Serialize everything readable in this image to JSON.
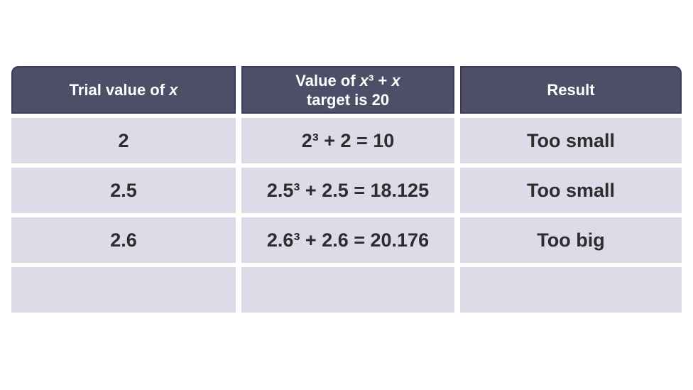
{
  "colors": {
    "page_bg": "#ffffff",
    "header_bg": "#4e4e69",
    "header_border": "#3a3a54",
    "header_text": "#ffffff",
    "cell_bg": "#dcdbe8",
    "cell_text": "#2d2d2d"
  },
  "table": {
    "header": {
      "trial": {
        "pre": "Trial value of ",
        "var": "x"
      },
      "value": {
        "l1_pre": "Value of ",
        "l1_var1": "x",
        "l1_mid": "³ + ",
        "l1_var2": "x",
        "line2": "target is 20"
      },
      "result": "Result"
    },
    "rows": [
      {
        "trial": "2",
        "value": "2³ + 2 = 10",
        "result": "Too small"
      },
      {
        "trial": "2.5",
        "value": "2.5³ + 2.5 = 18.125",
        "result": "Too small"
      },
      {
        "trial": "2.6",
        "value": "2.6³ + 2.6 = 20.176",
        "result": "Too big"
      },
      {
        "trial": "",
        "value": "",
        "result": ""
      }
    ]
  },
  "chart_data": {
    "type": "table",
    "columns": [
      "Trial value of x",
      "Value of x³ + x target is 20",
      "Result"
    ],
    "rows": [
      [
        "2",
        "2³ + 2 = 10",
        "Too small"
      ],
      [
        "2.5",
        "2.5³ + 2.5 = 18.125",
        "Too small"
      ],
      [
        "2.6",
        "2.6³ + 2.6 = 20.176",
        "Too big"
      ],
      [
        "",
        "",
        ""
      ]
    ]
  }
}
